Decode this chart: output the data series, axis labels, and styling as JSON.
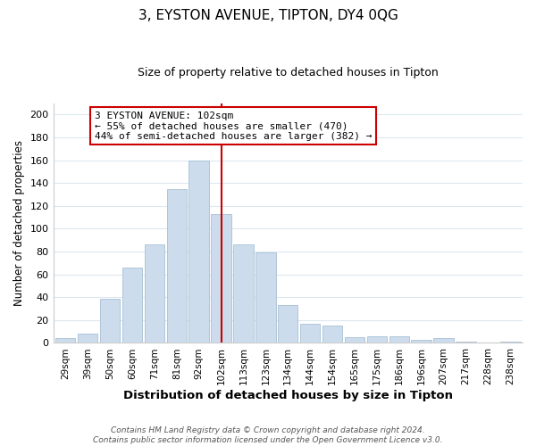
{
  "title": "3, EYSTON AVENUE, TIPTON, DY4 0QG",
  "subtitle": "Size of property relative to detached houses in Tipton",
  "xlabel": "Distribution of detached houses by size in Tipton",
  "ylabel": "Number of detached properties",
  "bar_labels": [
    "29sqm",
    "39sqm",
    "50sqm",
    "60sqm",
    "71sqm",
    "81sqm",
    "92sqm",
    "102sqm",
    "113sqm",
    "123sqm",
    "134sqm",
    "144sqm",
    "154sqm",
    "165sqm",
    "175sqm",
    "186sqm",
    "196sqm",
    "207sqm",
    "217sqm",
    "228sqm",
    "238sqm"
  ],
  "bar_values": [
    4,
    8,
    39,
    66,
    86,
    135,
    160,
    113,
    86,
    79,
    33,
    17,
    15,
    5,
    6,
    6,
    3,
    4,
    1,
    0,
    1
  ],
  "bar_color": "#ccdcec",
  "bar_edge_color": "#a8c0d4",
  "vline_color": "#cc0000",
  "vline_idx": 7,
  "annotation_text": "3 EYSTON AVENUE: 102sqm\n← 55% of detached houses are smaller (470)\n44% of semi-detached houses are larger (382) →",
  "annotation_box_color": "#ffffff",
  "annotation_box_edge": "#cc0000",
  "ylim": [
    0,
    210
  ],
  "yticks": [
    0,
    20,
    40,
    60,
    80,
    100,
    120,
    140,
    160,
    180,
    200
  ],
  "footer": "Contains HM Land Registry data © Crown copyright and database right 2024.\nContains public sector information licensed under the Open Government Licence v3.0.",
  "bg_color": "#ffffff",
  "grid_color": "#dce8f0"
}
